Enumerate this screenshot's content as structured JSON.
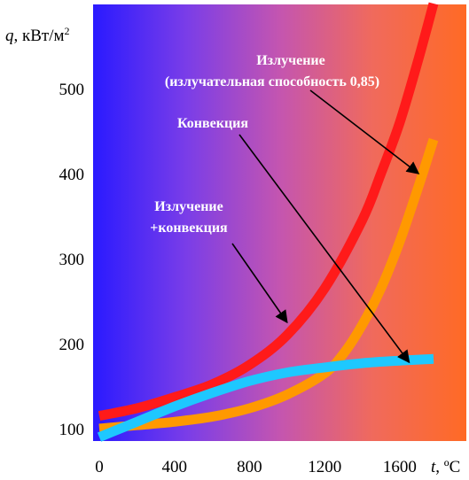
{
  "chart_data": {
    "type": "line",
    "xlabel": {
      "var": "t",
      "unit": ", ºC"
    },
    "ylabel": {
      "var": "q",
      "unit": ", кВт/м",
      "sup": "2"
    },
    "x_ticks": [
      "0",
      "400",
      "800",
      "1200",
      "1600"
    ],
    "y_ticks": [
      "100",
      "200",
      "300",
      "400",
      "500"
    ],
    "xlim": [
      0,
      2050
    ],
    "ylim": [
      80,
      560
    ],
    "background_gradient": [
      "#2a1aff",
      "#7a3de8",
      "#c455b0",
      "#f06a5c",
      "#ff6a25"
    ],
    "series": [
      {
        "color": "#ff1a1a",
        "x": [
          0,
          200,
          400,
          600,
          800,
          1000,
          1200,
          1400,
          1500,
          1600,
          1700,
          1780
        ],
        "y": [
          115,
          124,
          137,
          152,
          175,
          210,
          265,
          345,
          400,
          460,
          535,
          600
        ]
      },
      {
        "color": "#ff9900",
        "x": [
          0,
          200,
          400,
          600,
          800,
          1000,
          1200,
          1300,
          1400,
          1500,
          1600,
          1700,
          1780
        ],
        "y": [
          100,
          104,
          108,
          114,
          124,
          140,
          165,
          188,
          222,
          265,
          320,
          385,
          440
        ]
      },
      {
        "color": "#1ec8ff",
        "x": [
          0,
          200,
          400,
          600,
          800,
          1000,
          1200,
          1400,
          1600,
          1780
        ],
        "y": [
          90,
          108,
          126,
          142,
          156,
          166,
          172,
          177,
          180,
          182
        ]
      }
    ],
    "annotations": [
      {
        "lines": [
          "Излучение",
          "(излучательная способность 0,85)"
        ],
        "target": [
          1700,
          400
        ]
      },
      {
        "lines": [
          "Конвекция"
        ],
        "target": [
          1650,
          178
        ]
      },
      {
        "lines": [
          "Излучение",
          "+конвекция"
        ],
        "target": [
          1000,
          225
        ]
      }
    ]
  }
}
